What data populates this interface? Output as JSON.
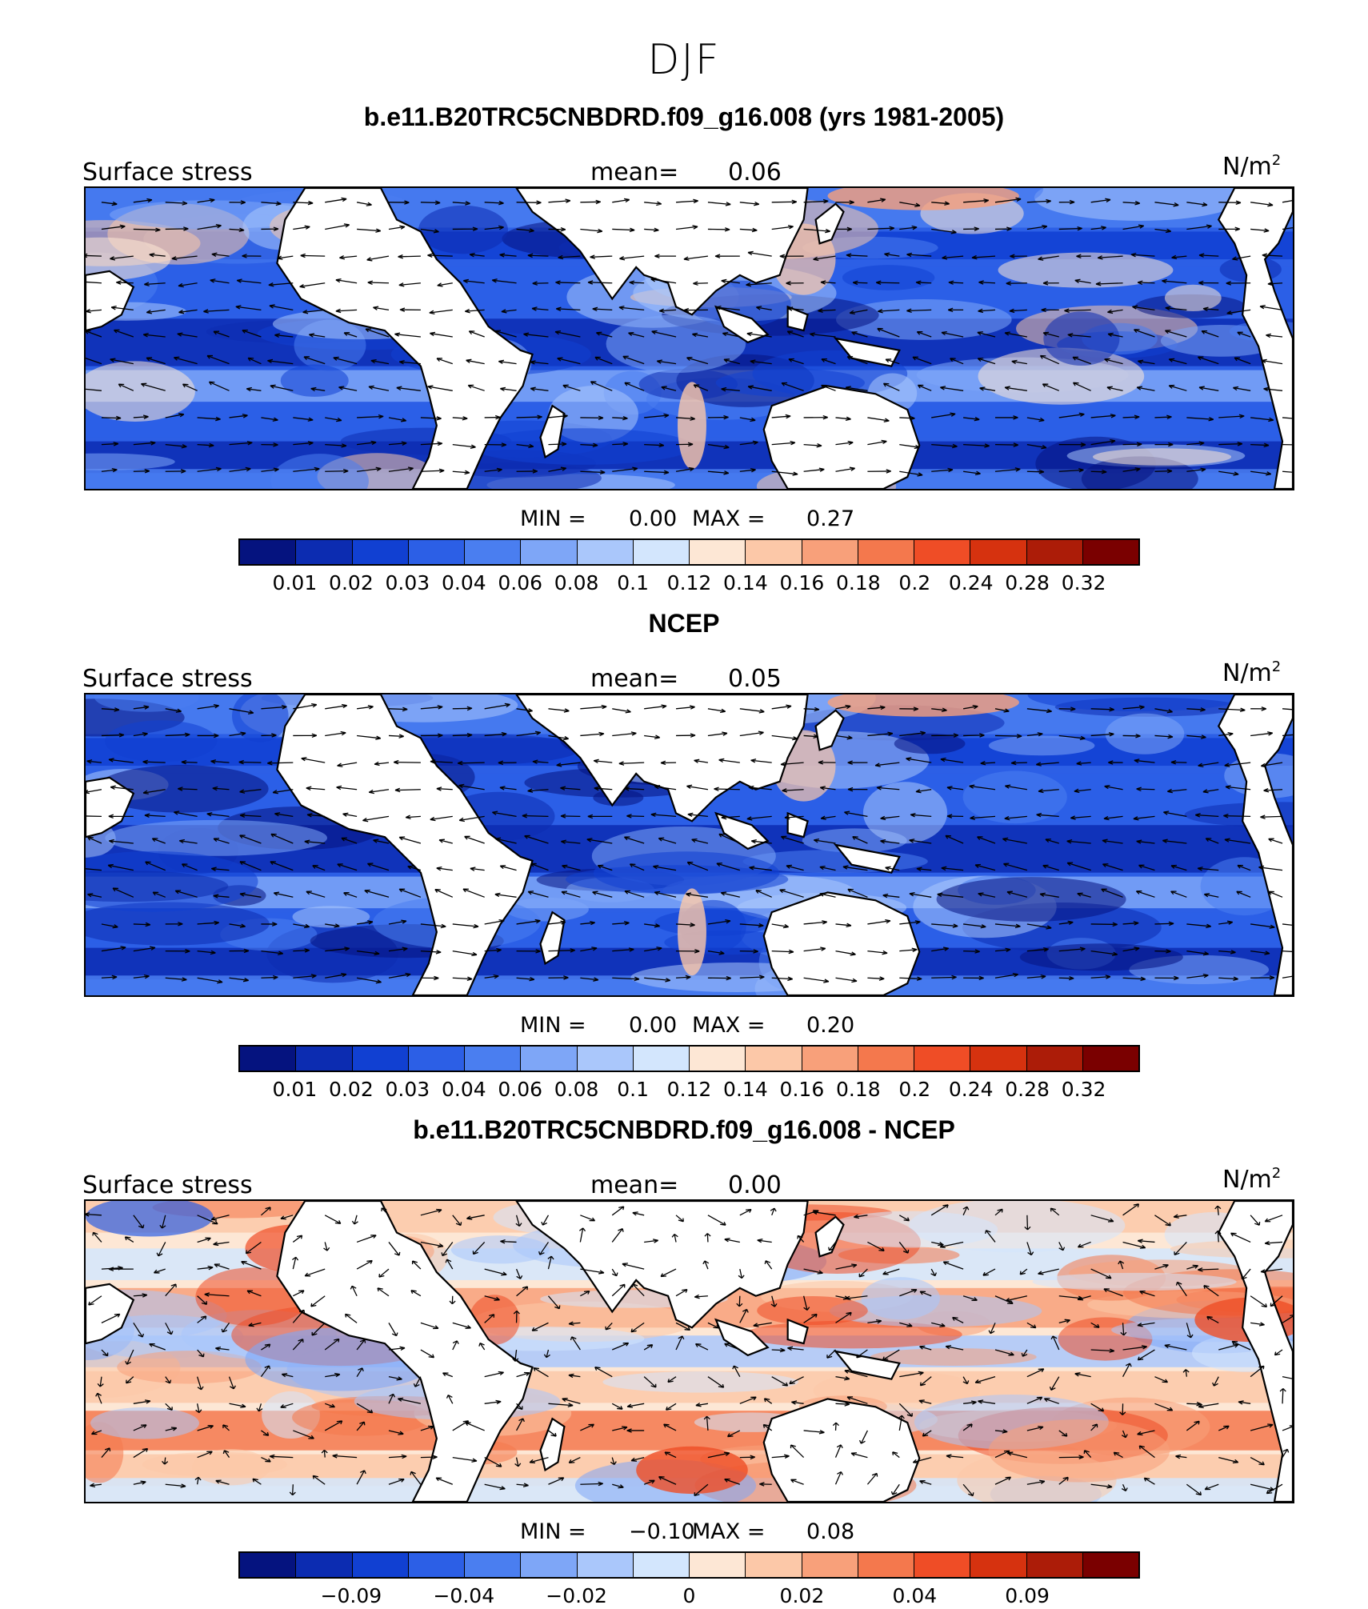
{
  "figure": {
    "title": "DJF",
    "colors": {
      "ocean_base": "#2d5fe0",
      "land": "#ffffff",
      "border": "#000000"
    }
  },
  "colorbar": {
    "colors": [
      "#05137f",
      "#0c2cb1",
      "#1140d2",
      "#2c5fe6",
      "#4a7ef0",
      "#7ea6f7",
      "#aac7fb",
      "#d3e6fd",
      "#fde7d5",
      "#fcc8a8",
      "#f8a07a",
      "#f4784d",
      "#ef4d26",
      "#d6320f",
      "#ac1c08",
      "#7a0000"
    ]
  },
  "panels": [
    {
      "title": "b.e11.B20TRC5CNBDRD.f09_g16.008 (yrs 1981-2005)",
      "left_label": "Surface stress",
      "mean_label": "mean=",
      "mean_value": "0.06",
      "units": "N/m",
      "units_sup": "2",
      "min_label": "MIN =",
      "min_value": "0.00",
      "max_label": "MAX =",
      "max_value": "0.27",
      "ticks": [
        "0.01",
        "0.02",
        "0.03",
        "0.04",
        "0.06",
        "0.08",
        "0.1",
        "0.12",
        "0.14",
        "0.16",
        "0.18",
        "0.2",
        "0.24",
        "0.28",
        "0.32"
      ]
    },
    {
      "title": "NCEP",
      "left_label": "Surface stress",
      "mean_label": "mean=",
      "mean_value": "0.05",
      "units": "N/m",
      "units_sup": "2",
      "min_label": "MIN =",
      "min_value": "0.00",
      "max_label": "MAX =",
      "max_value": "0.20",
      "ticks": [
        "0.01",
        "0.02",
        "0.03",
        "0.04",
        "0.06",
        "0.08",
        "0.1",
        "0.12",
        "0.14",
        "0.16",
        "0.18",
        "0.2",
        "0.24",
        "0.28",
        "0.32"
      ]
    },
    {
      "title": "b.e11.B20TRC5CNBDRD.f09_g16.008 - NCEP",
      "left_label": "Surface stress",
      "mean_label": "mean=",
      "mean_value": "0.00",
      "units": "N/m",
      "units_sup": "2",
      "min_label": "MIN =",
      "min_value": "−0.10",
      "max_label": "MAX =",
      "max_value": "0.08",
      "ticks": [
        "",
        "−0.09",
        "",
        "−0.04",
        "",
        "−0.02",
        "",
        "0",
        "",
        "0.02",
        "",
        "0.04",
        "",
        "0.09",
        ""
      ]
    }
  ]
}
